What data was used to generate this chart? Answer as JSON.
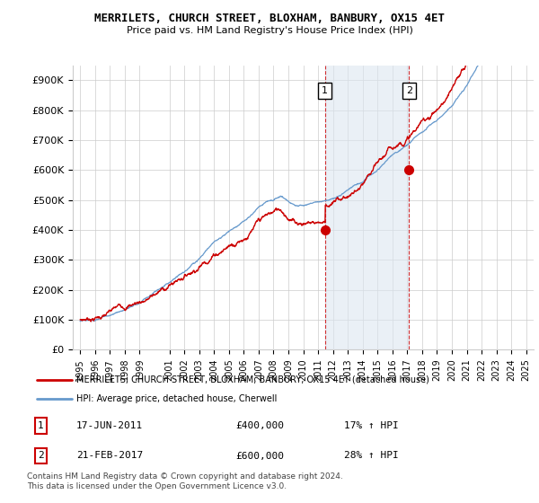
{
  "title": "MERRILETS, CHURCH STREET, BLOXHAM, BANBURY, OX15 4ET",
  "subtitle": "Price paid vs. HM Land Registry's House Price Index (HPI)",
  "legend_line1": "MERRILETS, CHURCH STREET, BLOXHAM, BANBURY, OX15 4ET (detached house)",
  "legend_line2": "HPI: Average price, detached house, Cherwell",
  "footnote": "Contains HM Land Registry data © Crown copyright and database right 2024.\nThis data is licensed under the Open Government Licence v3.0.",
  "ann1_label": "1",
  "ann1_date": "17-JUN-2011",
  "ann1_price": "£400,000",
  "ann1_hpi": "17% ↑ HPI",
  "ann1_x": 2011.46,
  "ann1_y": 400000,
  "ann2_label": "2",
  "ann2_date": "21-FEB-2017",
  "ann2_price": "£600,000",
  "ann2_hpi": "28% ↑ HPI",
  "ann2_x": 2017.13,
  "ann2_y": 600000,
  "ylim": [
    0,
    950000
  ],
  "yticks": [
    0,
    100000,
    200000,
    300000,
    400000,
    500000,
    600000,
    700000,
    800000,
    900000
  ],
  "ytick_labels": [
    "£0",
    "£100K",
    "£200K",
    "£300K",
    "£400K",
    "£500K",
    "£600K",
    "£700K",
    "£800K",
    "£900K"
  ],
  "xlim": [
    1994.5,
    2025.5
  ],
  "xticks": [
    1995,
    1996,
    1997,
    1998,
    1999,
    2001,
    2002,
    2003,
    2004,
    2005,
    2006,
    2007,
    2008,
    2009,
    2010,
    2011,
    2012,
    2013,
    2014,
    2015,
    2016,
    2017,
    2018,
    2019,
    2020,
    2021,
    2022,
    2023,
    2024,
    2025
  ],
  "red_color": "#cc0000",
  "blue_color": "#6699cc",
  "shaded_color": "#dce6f0",
  "grid_color": "#cccccc",
  "ann_box_color": "#cc0000"
}
